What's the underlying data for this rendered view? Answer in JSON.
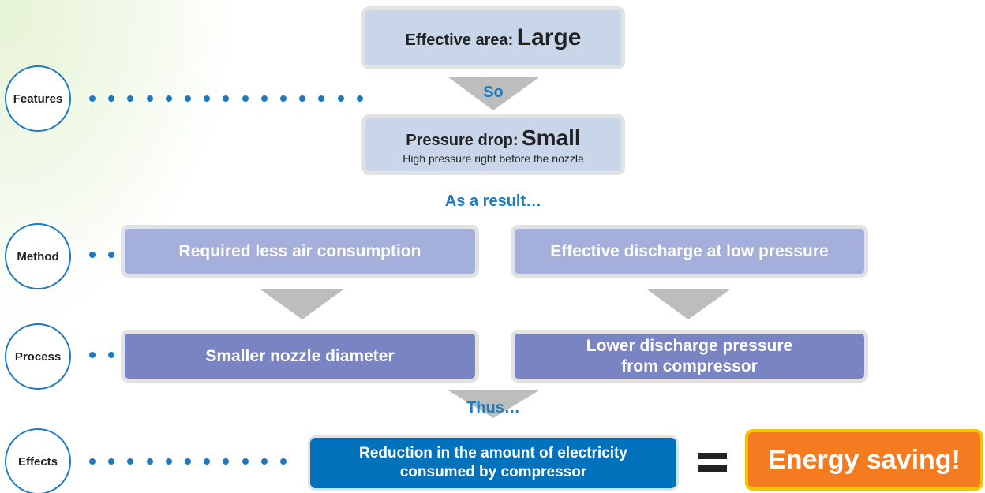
{
  "stages": [
    "Features",
    "Method",
    "Process",
    "Effects"
  ],
  "features": {
    "label": "Effective area:",
    "value": "Large",
    "connector": "So"
  },
  "pressure": {
    "label": "Pressure drop:",
    "value": "Small",
    "note": "High pressure right before the nozzle",
    "connector": "As a result…"
  },
  "method": [
    "Required less air consumption",
    "Effective discharge at low pressure"
  ],
  "process": [
    "Smaller nozzle diameter",
    "Lower discharge pressure from compressor"
  ],
  "process_connector": "Thus…",
  "effect": "Reduction in the amount of electricity consumed by compressor",
  "result": "Energy saving!"
}
